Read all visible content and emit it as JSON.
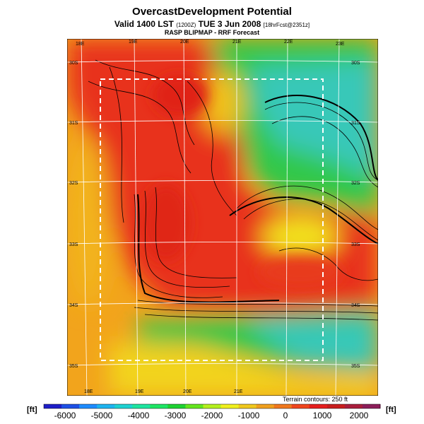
{
  "header": {
    "title": "OvercastDevelopment Potential",
    "valid_prefix": "Valid 1400 LST",
    "valid_utc": "(1200Z)",
    "valid_date": "TUE 3 Jun 2008",
    "forecast_tag": "[18hrFcst@2351z]",
    "model_line": "RASP BLIPMAP - RRF Forecast"
  },
  "map": {
    "lon_labels_top": [
      "18E",
      "19E",
      "20E",
      "21E",
      "22E",
      "23E"
    ],
    "lon_labels_bottom": [
      "18E",
      "19E",
      "20E",
      "21E"
    ],
    "lat_labels_left": [
      "30S",
      "31S",
      "32S",
      "33S",
      "34S",
      "35S"
    ],
    "lat_labels_right": [
      "30S",
      "31S",
      "32S",
      "33S",
      "34S",
      "35S"
    ],
    "contour_note": "Terrain contours: 250 ft",
    "colors": {
      "land_red": "#e8281c",
      "orange": "#f59a1a",
      "yellow": "#f2e61a",
      "green": "#2ecc3a",
      "cyan": "#30d0c0",
      "dashed_box": "#ffffff"
    }
  },
  "legend": {
    "unit_left": "[ft]",
    "unit_right": "[ft]",
    "ticks": [
      "-6000",
      "-5000",
      "-4000",
      "-3000",
      "-2000",
      "-1000",
      "0",
      "1000",
      "2000"
    ],
    "colors": [
      "#1e1ec8",
      "#1e50e6",
      "#1e8cff",
      "#1eb4f0",
      "#1ed2d2",
      "#1ee6a0",
      "#1ee664",
      "#1ed232",
      "#64e61e",
      "#b4f01e",
      "#f0f01e",
      "#f0c81e",
      "#f0a01e",
      "#f0781e",
      "#f0461e",
      "#e61e1e",
      "#c81e1e",
      "#aa1e3c",
      "#8c1e5a"
    ]
  }
}
